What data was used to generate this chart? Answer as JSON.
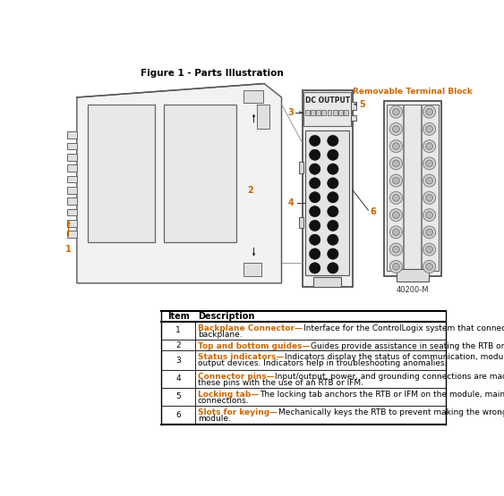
{
  "title": "Figure 1 - Parts Illustration",
  "bg_color": "#ffffff",
  "line_color": "#555555",
  "dark_color": "#333333",
  "orange_color": "#CC6600",
  "part_number": "40200-M",
  "dc_output_label": "DC OUTPUT",
  "removable_block_label": "Removable Terminal Block",
  "table_header": [
    "Item",
    "Description"
  ],
  "table_rows": [
    [
      "1",
      "Backplane Connector—",
      "Interface for the ControlLogix system that connects the module to the\nbackplane."
    ],
    [
      "2",
      "Top and bottom guides—",
      "Guides provide assistance in seating the RTB or IFM onto the module."
    ],
    [
      "3",
      "Status indicators—",
      "Indicators display the status of communication, module health, and input/\noutput devices. Indicators help in troubleshooting anomalies."
    ],
    [
      "4",
      "Connector pins—",
      "Input/output, power, and grounding connections are made to the module through\nthese pins with the use of an RTB or IFM."
    ],
    [
      "5",
      "Locking tab—",
      "The locking tab anchors the RTB or IFM on the module, maintaining wiring\nconnections."
    ],
    [
      "6",
      "Slots for keying—",
      "Mechanically keys the RTB to prevent making the wrong wire connections to your\nmodule."
    ]
  ]
}
